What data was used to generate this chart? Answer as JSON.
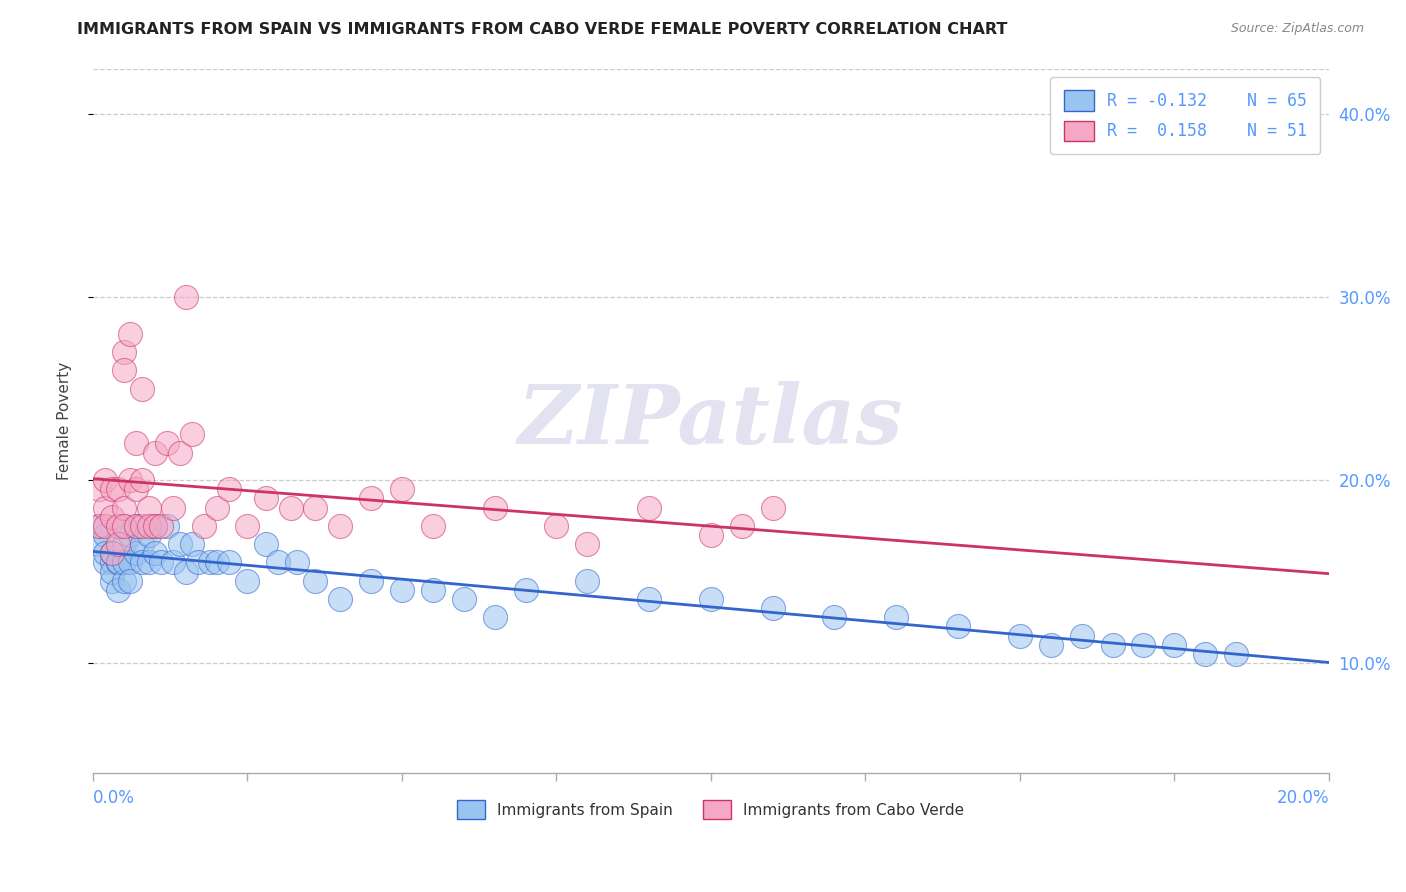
{
  "title": "IMMIGRANTS FROM SPAIN VS IMMIGRANTS FROM CABO VERDE FEMALE POVERTY CORRELATION CHART",
  "source": "Source: ZipAtlas.com",
  "ylabel": "Female Poverty",
  "yticks": [
    0.1,
    0.2,
    0.3,
    0.4
  ],
  "ytick_labels": [
    "10.0%",
    "20.0%",
    "30.0%",
    "40.0%"
  ],
  "xlim": [
    0.0,
    0.2
  ],
  "ylim": [
    0.04,
    0.425
  ],
  "legend_spain": "Immigrants from Spain",
  "legend_caboverde": "Immigrants from Cabo Verde",
  "R_spain": -0.132,
  "N_spain": 65,
  "R_caboverde": 0.158,
  "N_caboverde": 51,
  "color_spain": "#99c4f0",
  "color_caboverde": "#f5a8c5",
  "trendline_spain": "#3366cc",
  "trendline_caboverde": "#cc3366",
  "watermark": "ZIPatlas",
  "watermark_color": "#d0d0e8",
  "background_color": "#ffffff",
  "spain_x": [
    0.001,
    0.001,
    0.002,
    0.002,
    0.002,
    0.003,
    0.003,
    0.003,
    0.003,
    0.004,
    0.004,
    0.004,
    0.004,
    0.005,
    0.005,
    0.005,
    0.005,
    0.006,
    0.006,
    0.006,
    0.007,
    0.007,
    0.008,
    0.008,
    0.009,
    0.009,
    0.01,
    0.01,
    0.011,
    0.012,
    0.013,
    0.014,
    0.015,
    0.016,
    0.017,
    0.019,
    0.02,
    0.022,
    0.025,
    0.028,
    0.03,
    0.033,
    0.036,
    0.04,
    0.045,
    0.05,
    0.055,
    0.06,
    0.065,
    0.07,
    0.08,
    0.09,
    0.1,
    0.11,
    0.12,
    0.13,
    0.14,
    0.15,
    0.155,
    0.16,
    0.165,
    0.17,
    0.175,
    0.18,
    0.185
  ],
  "spain_y": [
    0.175,
    0.165,
    0.17,
    0.155,
    0.16,
    0.155,
    0.16,
    0.145,
    0.15,
    0.155,
    0.155,
    0.14,
    0.155,
    0.175,
    0.165,
    0.145,
    0.155,
    0.17,
    0.155,
    0.145,
    0.175,
    0.16,
    0.165,
    0.155,
    0.17,
    0.155,
    0.175,
    0.16,
    0.155,
    0.175,
    0.155,
    0.165,
    0.15,
    0.165,
    0.155,
    0.155,
    0.155,
    0.155,
    0.145,
    0.165,
    0.155,
    0.155,
    0.145,
    0.135,
    0.145,
    0.14,
    0.14,
    0.135,
    0.125,
    0.14,
    0.145,
    0.135,
    0.135,
    0.13,
    0.125,
    0.125,
    0.12,
    0.115,
    0.11,
    0.115,
    0.11,
    0.11,
    0.11,
    0.105,
    0.105
  ],
  "caboverde_x": [
    0.001,
    0.001,
    0.002,
    0.002,
    0.002,
    0.003,
    0.003,
    0.003,
    0.004,
    0.004,
    0.004,
    0.005,
    0.005,
    0.005,
    0.005,
    0.006,
    0.006,
    0.007,
    0.007,
    0.007,
    0.008,
    0.008,
    0.008,
    0.009,
    0.009,
    0.01,
    0.01,
    0.011,
    0.012,
    0.013,
    0.014,
    0.015,
    0.016,
    0.018,
    0.02,
    0.022,
    0.025,
    0.028,
    0.032,
    0.036,
    0.04,
    0.045,
    0.05,
    0.055,
    0.065,
    0.075,
    0.08,
    0.09,
    0.1,
    0.105,
    0.11
  ],
  "caboverde_y": [
    0.195,
    0.175,
    0.185,
    0.2,
    0.175,
    0.195,
    0.18,
    0.16,
    0.195,
    0.175,
    0.165,
    0.27,
    0.26,
    0.185,
    0.175,
    0.28,
    0.2,
    0.22,
    0.175,
    0.195,
    0.25,
    0.2,
    0.175,
    0.185,
    0.175,
    0.215,
    0.175,
    0.175,
    0.22,
    0.185,
    0.215,
    0.3,
    0.225,
    0.175,
    0.185,
    0.195,
    0.175,
    0.19,
    0.185,
    0.185,
    0.175,
    0.19,
    0.195,
    0.175,
    0.185,
    0.175,
    0.165,
    0.185,
    0.17,
    0.175,
    0.185
  ]
}
